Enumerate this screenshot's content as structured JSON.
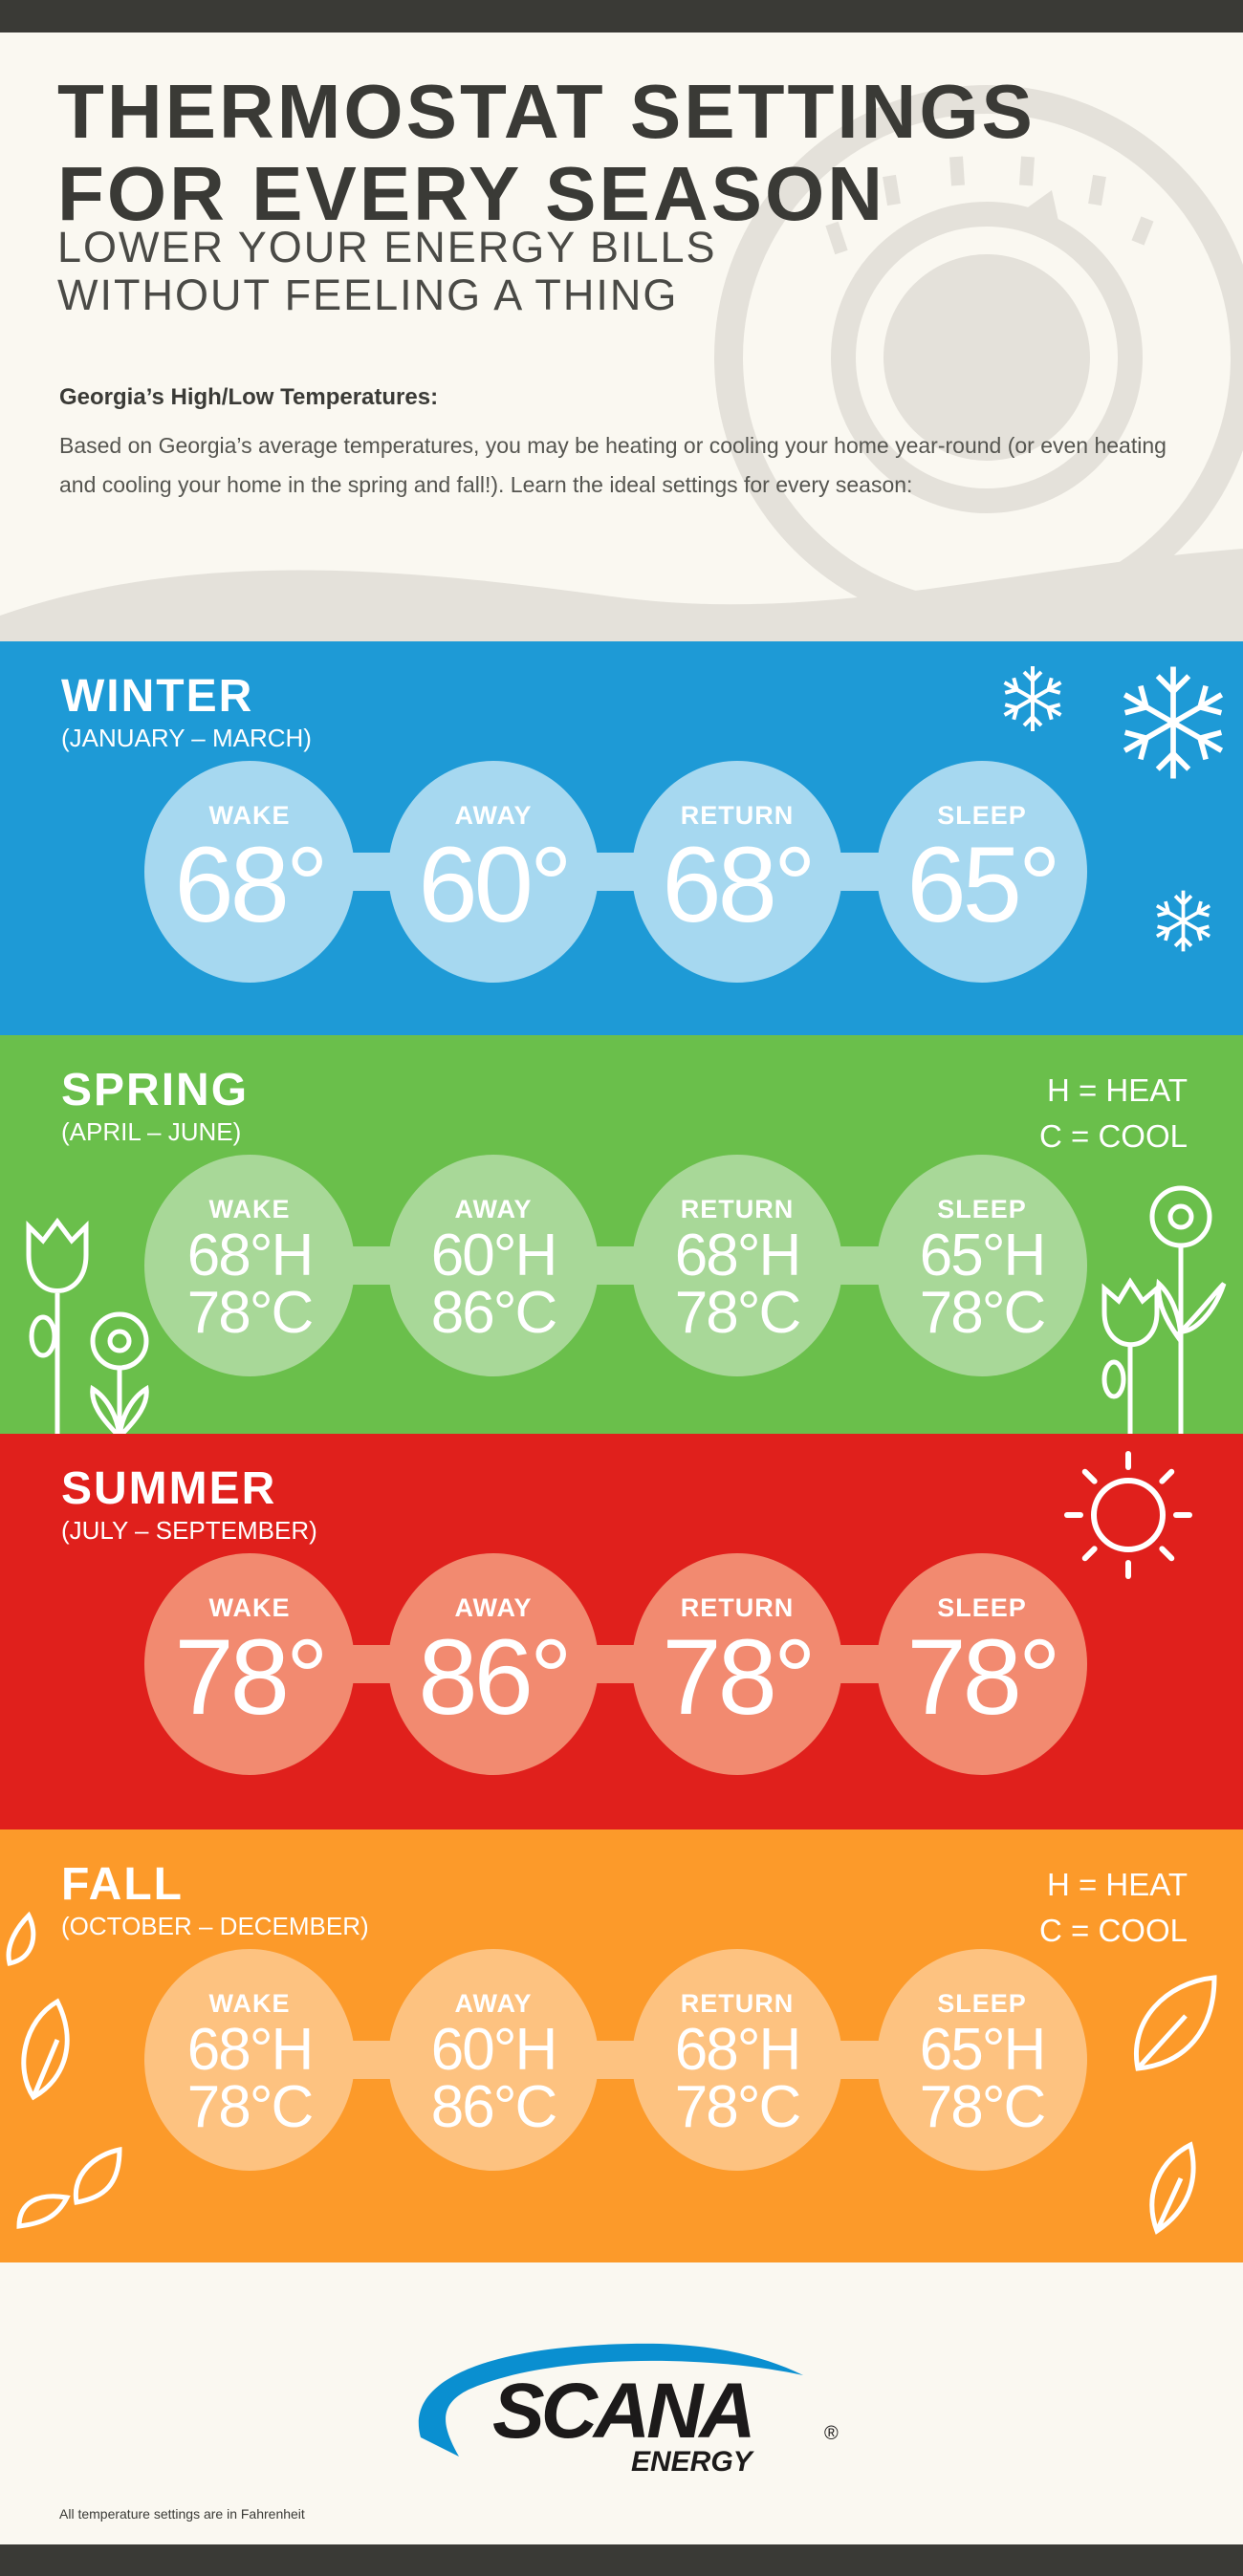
{
  "header": {
    "title_line1": "THERMOSTAT SETTINGS",
    "title_line2": "FOR EVERY SEASON",
    "subtitle_line1": "LOWER YOUR ENERGY BILLS",
    "subtitle_line2": "WITHOUT FEELING A THING",
    "intro_heading": "Georgia’s High/Low Temperatures:",
    "intro_text": "Based on Georgia’s average temperatures, you may be heating or cooling your home year-round (or even heating and cooling your home in the spring and fall!). Learn the ideal settings for every season:"
  },
  "colors": {
    "background": "#faf8f1",
    "dark_bar": "#3a3a36",
    "winter": "#1e9ad6",
    "winter_circle": "#a6d8f0",
    "spring": "#6abf4b",
    "spring_circle": "#a8d898",
    "summer": "#e0201c",
    "summer_circle": "#f28a70",
    "fall": "#fc9a2a",
    "fall_circle": "#fdc280",
    "logo_blue": "#0a8fd0"
  },
  "seasons": [
    {
      "id": "winter",
      "name": "WINTER",
      "months": "(JANUARY – MARCH)",
      "icon": "snowflake-icon",
      "settings": [
        {
          "label": "WAKE",
          "value": "68°"
        },
        {
          "label": "AWAY",
          "value": "60°"
        },
        {
          "label": "RETURN",
          "value": "68°"
        },
        {
          "label": "SLEEP",
          "value": "65°"
        }
      ]
    },
    {
      "id": "spring",
      "name": "SPRING",
      "months": "(APRIL – JUNE)",
      "icon": "flower-icon",
      "legend": [
        "H = HEAT",
        "C = COOL"
      ],
      "settings": [
        {
          "label": "WAKE",
          "heat": "68°H",
          "cool": "78°C"
        },
        {
          "label": "AWAY",
          "heat": "60°H",
          "cool": "86°C"
        },
        {
          "label": "RETURN",
          "heat": "68°H",
          "cool": "78°C"
        },
        {
          "label": "SLEEP",
          "heat": "65°H",
          "cool": "78°C"
        }
      ]
    },
    {
      "id": "summer",
      "name": "SUMMER",
      "months": "(JULY – SEPTEMBER)",
      "icon": "sun-icon",
      "settings": [
        {
          "label": "WAKE",
          "value": "78°"
        },
        {
          "label": "AWAY",
          "value": "86°"
        },
        {
          "label": "RETURN",
          "value": "78°"
        },
        {
          "label": "SLEEP",
          "value": "78°"
        }
      ]
    },
    {
      "id": "fall",
      "name": "FALL",
      "months": "(OCTOBER – DECEMBER)",
      "icon": "leaf-icon",
      "legend": [
        "H = HEAT",
        "C = COOL"
      ],
      "settings": [
        {
          "label": "WAKE",
          "heat": "68°H",
          "cool": "78°C"
        },
        {
          "label": "AWAY",
          "heat": "60°H",
          "cool": "86°C"
        },
        {
          "label": "RETURN",
          "heat": "68°H",
          "cool": "78°C"
        },
        {
          "label": "SLEEP",
          "heat": "65°H",
          "cool": "78°C"
        }
      ]
    }
  ],
  "footer": {
    "logo_text": "SCANA",
    "logo_subtext": "ENERGY",
    "note": "All temperature settings are in Fahrenheit"
  }
}
